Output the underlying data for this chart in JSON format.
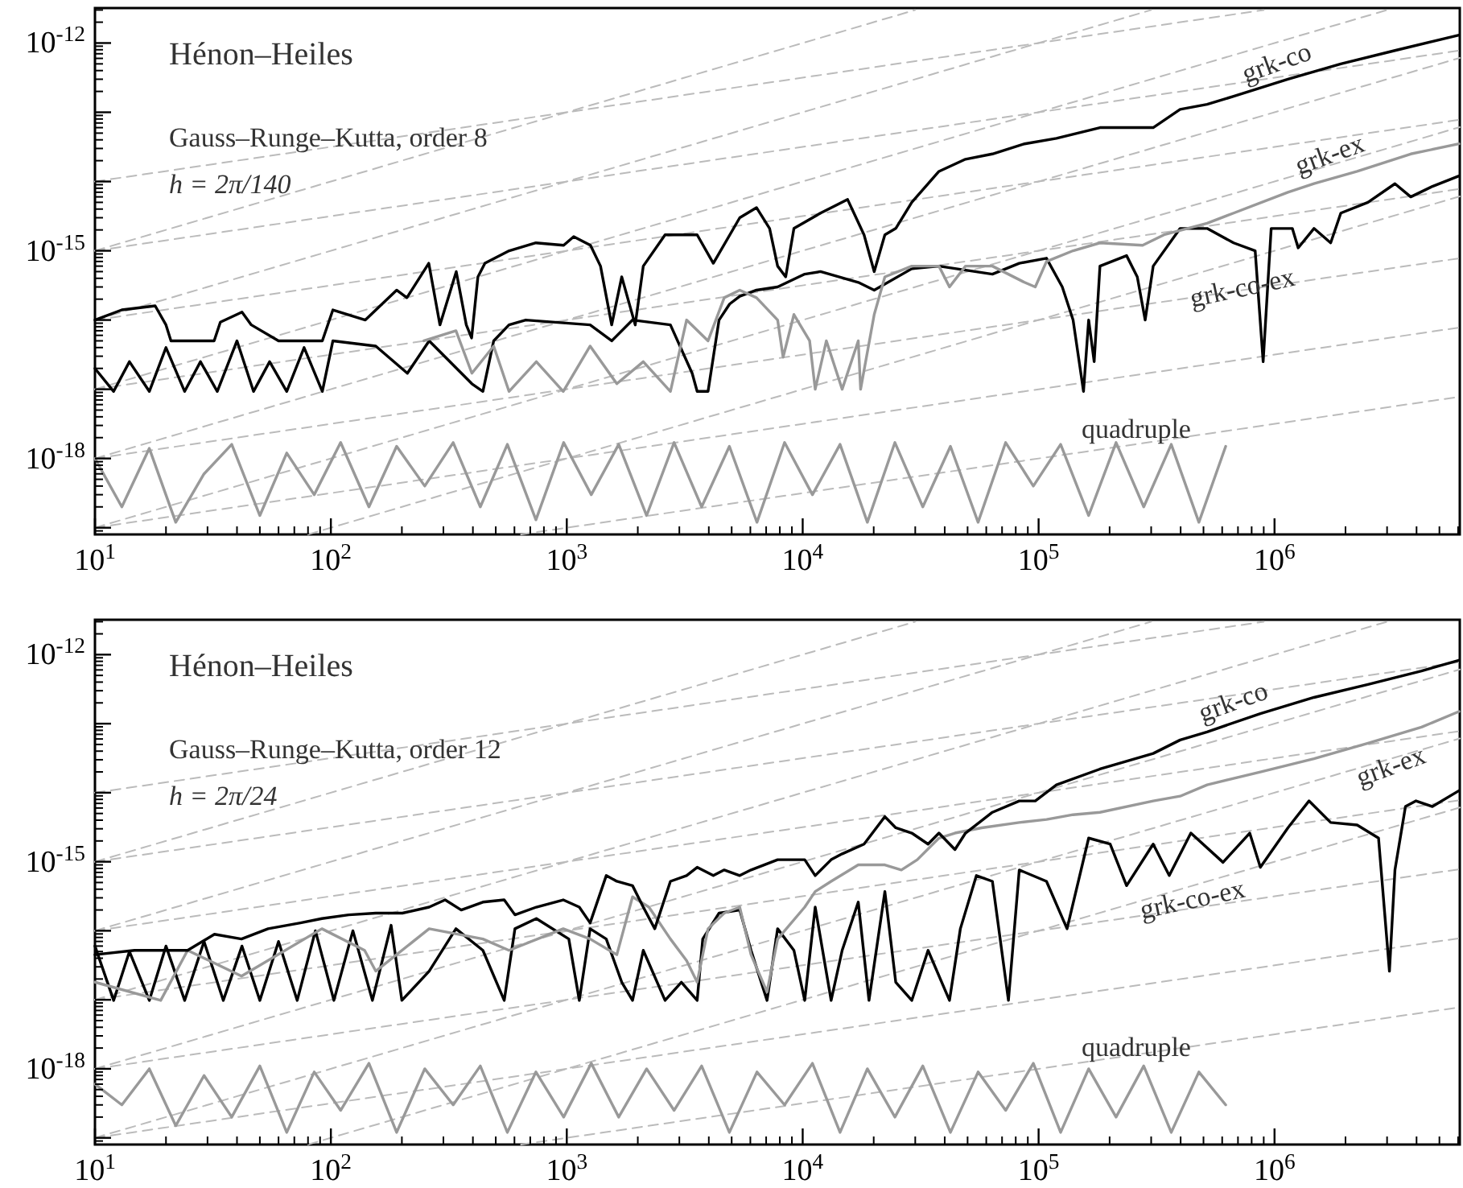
{
  "chart_data": [
    {
      "type": "line",
      "title": "Hénon–Heiles",
      "subtitle": "Gauss–Runge–Kutta, order 8",
      "annotations": [
        "h = 2π/140"
      ],
      "log": "xy",
      "xlim": [
        10,
        6100000
      ],
      "ylim": [
        8e-20,
        3.2e-12
      ],
      "xticks": [
        {
          "value": 10,
          "label": "10$^{1}$"
        },
        {
          "value": 100,
          "label": "10$^{2}$"
        },
        {
          "value": 1000,
          "label": "10$^{3}$"
        },
        {
          "value": 10000,
          "label": "10$^{4}$"
        },
        {
          "value": 100000,
          "label": "10$^{5}$"
        },
        {
          "value": 1000000,
          "label": "10$^{6}$"
        }
      ],
      "yticks": [
        {
          "value": 1e-19,
          "label": null
        },
        {
          "value": 1e-18,
          "label": "10$^{-18}$"
        },
        {
          "value": 1e-17,
          "label": null
        },
        {
          "value": 1e-16,
          "label": null
        },
        {
          "value": 1e-15,
          "label": "10$^{-15}$"
        },
        {
          "value": 1e-14,
          "label": null
        },
        {
          "value": 1e-13,
          "label": null
        },
        {
          "value": 1e-12,
          "label": "10$^{-12}$"
        }
      ],
      "series": [
        {
          "name": "grk-co",
          "color": "#000000",
          "x": [
            10,
            13,
            18,
            20,
            21,
            32,
            34,
            42,
            46,
            60,
            92,
            102,
            140,
            190,
            210,
            260,
            290,
            340,
            375,
            395,
            420,
            450,
            570,
            740,
            970,
            1070,
            1260,
            1390,
            1550,
            1710,
            1950,
            2110,
            2610,
            3570,
            4180,
            5410,
            6370,
            7240,
            7830,
            8470,
            9180,
            11900,
            15500,
            18200,
            20100,
            22300,
            24800,
            29000,
            37800,
            49000,
            63700,
            87100,
            119000,
            182000,
            306000,
            398000,
            518000,
            671000,
            1140000,
            1910000,
            3240000,
            6050000
          ],
          "values": [
            1e-16,
            1.4e-16,
            1.6e-16,
            8.5e-17,
            5e-17,
            5e-17,
            9.3e-17,
            1.3e-16,
            8.5e-17,
            5e-17,
            5e-17,
            1.4e-16,
            1e-16,
            2.7e-16,
            2.1e-16,
            6.6e-16,
            8.5e-17,
            5e-16,
            8.5e-17,
            5.5e-17,
            4.2e-16,
            6.6e-16,
            1e-15,
            1.3e-15,
            1.2e-15,
            1.6e-15,
            1.2e-15,
            6e-16,
            8.5e-17,
            4.2e-16,
            8.5e-17,
            6e-16,
            1.7e-15,
            1.7e-15,
            6.6e-16,
            3e-15,
            4.2e-15,
            2.1e-15,
            6e-16,
            4.2e-16,
            2.1e-15,
            3.5e-15,
            5.5e-15,
            1.7e-15,
            5e-16,
            1.7e-15,
            2.1e-15,
            5e-15,
            1.4e-14,
            2.1e-14,
            2.5e-14,
            3.5e-14,
            4.2e-14,
            6e-14,
            6e-14,
            1.1e-13,
            1.3e-13,
            1.7e-13,
            3e-13,
            5e-13,
            7.8e-13,
            1.3e-12
          ]
        },
        {
          "name": "grk-ex",
          "color": "#999999",
          "x": [
            248,
            339,
            396,
            490,
            569,
            743,
            966,
            1256,
            1630,
            2110,
            2750,
            3220,
            3970,
            4650,
            5410,
            6370,
            7830,
            8260,
            9180,
            10700,
            11300,
            12600,
            14700,
            17200,
            17600,
            20100,
            22300,
            29000,
            37800,
            41900,
            49000,
            63700,
            87100,
            96800,
            108000,
            140000,
            182000,
            276000,
            340000,
            518000,
            671000,
            1140000,
            1470000,
            2240000,
            3780000,
            6050000
          ],
          "values": [
            5e-17,
            7e-17,
            1.7e-17,
            4.2e-17,
            9.3e-18,
            2.5e-17,
            9.3e-18,
            4.2e-17,
            1.2e-17,
            2.5e-17,
            9.3e-18,
            1e-16,
            5e-17,
            2.1e-16,
            2.7e-16,
            2.1e-16,
            1e-16,
            2.9e-17,
            1.2e-16,
            5e-17,
            1e-17,
            5e-17,
            1e-17,
            5e-17,
            1e-17,
            1.2e-16,
            4.2e-16,
            6e-16,
            6e-16,
            3e-16,
            6e-16,
            6e-16,
            3.5e-16,
            3e-16,
            7e-16,
            1e-15,
            1.3e-15,
            1.2e-15,
            1.7e-15,
            2.5e-15,
            3.5e-15,
            7e-15,
            9.3e-15,
            1.4e-14,
            2.5e-14,
            3.5e-14
          ]
        },
        {
          "name": "grk-co-ex",
          "color": "#000000",
          "x": [
            10,
            12,
            14,
            17,
            20,
            24,
            28,
            33,
            40,
            47,
            55,
            65,
            77,
            92,
            102,
            155,
            211,
            261,
            396,
            441,
            490,
            569,
            670,
            1256,
            1550,
            1900,
            2750,
            3400,
            3570,
            3970,
            4420,
            4900,
            5410,
            6370,
            7830,
            10200,
            11900,
            17200,
            20100,
            29000,
            37800,
            63700,
            82800,
            108000,
            126000,
            140000,
            155000,
            163000,
            172000,
            182000,
            236000,
            262000,
            283000,
            306000,
            398000,
            518000,
            671000,
            828000,
            895000,
            968000,
            1190000,
            1260000,
            1470000,
            1730000,
            1910000,
            2490000,
            3240000,
            3780000,
            4670000,
            6050000
          ],
          "values": [
            2e-17,
            9.3e-18,
            2.5e-17,
            9.3e-18,
            4e-17,
            9.3e-18,
            2.5e-17,
            9.3e-18,
            5e-17,
            9.3e-18,
            2.5e-17,
            9.3e-18,
            4e-17,
            9.3e-18,
            5e-17,
            4.2e-17,
            1.7e-17,
            5e-17,
            1.2e-17,
            9.3e-18,
            5e-17,
            8.5e-17,
            1e-16,
            8.5e-17,
            5e-17,
            1e-16,
            8.5e-17,
            1.7e-17,
            9.3e-18,
            9.3e-18,
            1e-16,
            1.7e-16,
            2.2e-16,
            2.7e-16,
            3e-16,
            4.6e-16,
            5e-16,
            3.5e-16,
            2.7e-16,
            5.5e-16,
            6e-16,
            4.6e-16,
            6.6e-16,
            7.8e-16,
            3e-16,
            1e-16,
            9.3e-18,
            1e-16,
            2.5e-17,
            6e-16,
            8.5e-16,
            4.2e-16,
            1e-16,
            6e-16,
            2.1e-15,
            2.1e-15,
            1.3e-15,
            1e-15,
            2.5e-17,
            2.1e-15,
            2.1e-15,
            1.1e-15,
            2.1e-15,
            1.3e-15,
            3.5e-15,
            5e-15,
            9.3e-15,
            6e-15,
            8.5e-15,
            1.2e-14
          ]
        },
        {
          "name": "quadruple",
          "color": "#999999",
          "x": [
            10,
            13,
            17,
            22,
            29,
            38,
            50,
            65,
            85,
            110,
            145,
            190,
            250,
            330,
            430,
            560,
            740,
            970,
            1270,
            1660,
            2180,
            2850,
            3730,
            4890,
            6400,
            8380,
            11000,
            14400,
            18800,
            24600,
            32300,
            42300,
            55400,
            72500,
            95000,
            124000,
            163000,
            213000,
            279000,
            365000,
            478000,
            621000
          ],
          "values": [
            1e-18,
            2e-19,
            1.4e-18,
            1.2e-19,
            6e-19,
            1.6e-18,
            1.5e-19,
            1.2e-18,
            3e-19,
            1.7e-18,
            2e-19,
            1.5e-18,
            4e-19,
            1.7e-18,
            2e-19,
            1.6e-18,
            1.3e-19,
            1.7e-18,
            3e-19,
            1.6e-18,
            1.5e-19,
            1.7e-18,
            2e-19,
            1.5e-18,
            1.2e-19,
            1.7e-18,
            3e-19,
            1.6e-18,
            1.2e-19,
            1.7e-18,
            2e-19,
            1.5e-18,
            1.2e-19,
            1.7e-18,
            4e-19,
            1.6e-18,
            1.5e-19,
            1.7e-18,
            2e-19,
            1.6e-18,
            1.2e-19,
            1.5e-18
          ]
        },
        {
          "color": "#bbbbbb",
          "line_style": "dashed",
          "x": [
            10,
            900000
          ],
          "values": [
            1e-14,
            3e-12
          ]
        },
        {
          "color": "#bbbbbb",
          "line_style": "dashed",
          "x": [
            10,
            6100000
          ],
          "values": [
            1e-15,
            7.8e-13
          ]
        },
        {
          "color": "#bbbbbb",
          "line_style": "dashed",
          "x": [
            10,
            6100000
          ],
          "values": [
            1e-16,
            7.8e-14
          ]
        },
        {
          "color": "#bbbbbb",
          "line_style": "dashed",
          "x": [
            10,
            6100000
          ],
          "values": [
            1e-17,
            7.8e-15
          ]
        },
        {
          "color": "#bbbbbb",
          "line_style": "dashed",
          "x": [
            10,
            6100000
          ],
          "values": [
            1e-18,
            7.8e-16
          ]
        },
        {
          "color": "#bbbbbb",
          "line_style": "dashed",
          "x": [
            10,
            6100000
          ],
          "values": [
            1e-19,
            7.8e-17
          ]
        },
        {
          "color": "#bbbbbb",
          "line_style": "dashed",
          "x": [
            640,
            6100000
          ],
          "values": [
            8e-20,
            7.8e-18
          ]
        },
        {
          "color": "#bbbbbb",
          "line_style": "dashed",
          "x": [
            10,
            30000
          ],
          "values": [
            1e-15,
            3e-12
          ]
        },
        {
          "color": "#bbbbbb",
          "line_style": "dashed",
          "x": [
            10,
            300000
          ],
          "values": [
            1e-16,
            3e-12
          ]
        },
        {
          "color": "#bbbbbb",
          "line_style": "dashed",
          "x": [
            10,
            3000000
          ],
          "values": [
            1e-17,
            3e-12
          ]
        },
        {
          "color": "#bbbbbb",
          "line_style": "dashed",
          "x": [
            10,
            6100000
          ],
          "values": [
            1e-18,
            6.1e-13
          ]
        },
        {
          "color": "#bbbbbb",
          "line_style": "dashed",
          "x": [
            10,
            6100000
          ],
          "values": [
            1e-19,
            6.1e-14
          ]
        },
        {
          "color": "#bbbbbb",
          "line_style": "dashed",
          "x": [
            80,
            6100000
          ],
          "values": [
            8e-20,
            6.1e-15
          ]
        }
      ]
    },
    {
      "type": "line",
      "title": "Hénon–Heiles",
      "subtitle": "Gauss–Runge–Kutta, order 12",
      "annotations": [
        "h = 2π/24"
      ],
      "log": "xy",
      "xlim": [
        10,
        6100000
      ],
      "ylim": [
        8e-20,
        3.2e-12
      ],
      "xticks": [
        {
          "value": 10,
          "label": "10$^{1}$"
        },
        {
          "value": 100,
          "label": "10$^{2}$"
        },
        {
          "value": 1000,
          "label": "10$^{3}$"
        },
        {
          "value": 10000,
          "label": "10$^{4}$"
        },
        {
          "value": 100000,
          "label": "10$^{5}$"
        },
        {
          "value": 1000000,
          "label": "10$^{6}$"
        }
      ],
      "yticks": [
        {
          "value": 1e-19,
          "label": null
        },
        {
          "value": 1e-18,
          "label": "10$^{-18}$"
        },
        {
          "value": 1e-17,
          "label": null
        },
        {
          "value": 1e-16,
          "label": null
        },
        {
          "value": 1e-15,
          "label": "10$^{-15}$"
        },
        {
          "value": 1e-14,
          "label": null
        },
        {
          "value": 1e-13,
          "label": null
        },
        {
          "value": 1e-12,
          "label": "10$^{-12}$"
        }
      ],
      "series": [
        {
          "name": "grk-co",
          "color": "#000000",
          "x": [
            10,
            14.7,
            24.7,
            32.1,
            41.8,
            54.2,
            74.3,
            91.6,
            119,
            155,
            201,
            261,
            305,
            357,
            441,
            543,
            603,
            743,
            966,
            1130,
            1256,
            1470,
            1630,
            1900,
            2110,
            2360,
            2750,
            3220,
            3570,
            4180,
            4650,
            5410,
            6040,
            7830,
            10200,
            11300,
            13200,
            14700,
            18200,
            22300,
            24800,
            29000,
            34000,
            37800,
            44200,
            49000,
            63700,
            82800,
            96800,
            119000,
            182000,
            306000,
            398000,
            518000,
            871000,
            1470000,
            2490000,
            4200000,
            6050000
          ],
          "values": [
            4.5e-17,
            5.2e-17,
            5.2e-17,
            8.9e-17,
            7.6e-17,
            1.07e-16,
            1.3e-16,
            1.5e-16,
            1.7e-16,
            1.8e-16,
            1.8e-16,
            2.2e-16,
            2.8e-16,
            2e-16,
            2.6e-16,
            2.8e-16,
            1.7e-16,
            2.2e-16,
            2.8e-16,
            2.2e-16,
            1.3e-16,
            6.3e-16,
            5.2e-16,
            4.5e-16,
            2.2e-16,
            1.07e-16,
            5.2e-16,
            6.3e-16,
            8.3e-16,
            6.3e-16,
            7.6e-16,
            6.3e-16,
            7.6e-16,
            1.07e-15,
            1.07e-15,
            6.3e-16,
            1.07e-15,
            1.3e-15,
            1.8e-15,
            4.5e-15,
            3.1e-15,
            2.6e-15,
            1.8e-15,
            2.6e-15,
            1.5e-15,
            2.6e-15,
            5.2e-15,
            7.6e-15,
            7.6e-15,
            1.3e-14,
            2.2e-14,
            3.7e-14,
            5.8e-14,
            7.6e-14,
            1.4e-13,
            2.4e-13,
            3.7e-13,
            5.8e-13,
            8.3e-13
          ]
        },
        {
          "name": "grk-ex",
          "color": "#999999",
          "x": [
            10,
            19,
            24.7,
            41.8,
            91.6,
            139,
            155,
            261,
            441,
            569,
            966,
            1256,
            1630,
            1900,
            2230,
            2750,
            3220,
            3570,
            3970,
            4650,
            5410,
            6040,
            7060,
            7830,
            10200,
            11300,
            13200,
            17200,
            22300,
            26200,
            30600,
            37800,
            44200,
            57400,
            82800,
            108000,
            140000,
            182000,
            306000,
            398000,
            518000,
            871000,
            1470000,
            2490000,
            4200000,
            6050000
          ],
          "values": [
            1.8e-17,
            9.8e-18,
            5.2e-17,
            2.2e-17,
            1.07e-16,
            5.2e-17,
            2.6e-17,
            1.07e-16,
            7.6e-17,
            5.2e-17,
            1.07e-16,
            7.6e-17,
            4.5e-17,
            3.1e-16,
            2.2e-16,
            7.6e-17,
            3.7e-17,
            1.8e-17,
            1.07e-16,
            1.8e-16,
            2.2e-16,
            4.5e-17,
            1.3e-17,
            7.6e-17,
            2.2e-16,
            3.7e-16,
            5.2e-16,
            9e-16,
            9e-16,
            7.6e-16,
            1.07e-15,
            2.2e-15,
            2.6e-15,
            3.1e-15,
            3.7e-15,
            4.1e-15,
            4.8e-15,
            5.2e-15,
            7.6e-15,
            8.9e-15,
            1.3e-14,
            2e-14,
            3.1e-14,
            5.2e-14,
            8.9e-14,
            1.5e-13
          ]
        },
        {
          "name": "grk-co-ex",
          "color": "#000000",
          "x": [
            10,
            12,
            14,
            17,
            20,
            24,
            29,
            35,
            42,
            50,
            60,
            72,
            86,
            103,
            124,
            150,
            180,
            200,
            261,
            339,
            441,
            543,
            603,
            743,
            1020,
            1130,
            1256,
            1470,
            1710,
            1900,
            2110,
            2610,
            3060,
            3570,
            3770,
            4420,
            5410,
            6040,
            7060,
            7830,
            9180,
            10200,
            11300,
            13200,
            14700,
            17200,
            19100,
            22300,
            24800,
            29000,
            34000,
            41900,
            46600,
            54500,
            63700,
            74500,
            82800,
            108000,
            132000,
            163000,
            201000,
            236000,
            306000,
            358000,
            442000,
            605000,
            785000,
            871000,
            1140000,
            1400000,
            1730000,
            2240000,
            2760000,
            3070000,
            3240000,
            3590000,
            3980000,
            4670000,
            6050000
          ],
          "values": [
            6e-17,
            9.8e-18,
            5e-17,
            9.8e-18,
            6e-17,
            9.8e-18,
            7e-17,
            9.8e-18,
            6e-17,
            9.8e-18,
            7e-17,
            9.8e-18,
            1e-16,
            9.8e-18,
            1e-16,
            9.8e-18,
            1.2e-16,
            9.8e-18,
            2.6e-17,
            1.07e-16,
            5.2e-17,
            9.8e-18,
            1.07e-16,
            1.5e-16,
            7.6e-17,
            9.8e-18,
            1.07e-16,
            7.6e-17,
            1.8e-17,
            9.8e-18,
            5.2e-17,
            9.8e-18,
            1.8e-17,
            9.8e-18,
            7.6e-17,
            1.8e-16,
            2e-16,
            5.2e-17,
            9.8e-18,
            1.07e-16,
            5.2e-17,
            9.8e-18,
            2.2e-16,
            9.8e-18,
            5.2e-17,
            2.6e-16,
            9.8e-18,
            3.7e-16,
            1.8e-17,
            9.8e-18,
            5.2e-17,
            9.8e-18,
            1.07e-16,
            6.3e-16,
            5.2e-16,
            9.8e-18,
            7.6e-16,
            5.2e-16,
            1.07e-16,
            2.2e-15,
            1.8e-15,
            4.5e-16,
            1.8e-15,
            6.3e-16,
            2.6e-15,
            9.8e-16,
            2.6e-15,
            8.3e-16,
            3.1e-15,
            7.6e-15,
            3.7e-15,
            3.4e-15,
            2.2e-15,
            2.6e-17,
            7.6e-16,
            6.3e-15,
            7.6e-15,
            6.3e-15,
            1.07e-14
          ]
        },
        {
          "name": "quadruple",
          "color": "#999999",
          "x": [
            10,
            13,
            17,
            22,
            29,
            38,
            50,
            65,
            85,
            110,
            145,
            190,
            250,
            330,
            430,
            560,
            740,
            970,
            1270,
            1660,
            2180,
            2850,
            3730,
            4890,
            6400,
            8380,
            11000,
            14400,
            18800,
            24600,
            32300,
            42300,
            55400,
            72500,
            95000,
            124000,
            163000,
            213000,
            279000,
            365000,
            478000,
            621000
          ],
          "values": [
            6e-19,
            3e-19,
            1e-18,
            1.5e-19,
            8e-19,
            2e-19,
            1.1e-18,
            1.2e-19,
            9e-19,
            2.5e-19,
            1.2e-18,
            1.2e-19,
            1e-18,
            3e-19,
            1.1e-18,
            1.2e-19,
            9e-19,
            2e-19,
            1.2e-18,
            2e-19,
            1e-18,
            2.5e-19,
            1.1e-18,
            1.2e-19,
            9e-19,
            3e-19,
            1.2e-18,
            1.2e-19,
            1e-18,
            2e-19,
            1.1e-18,
            1.2e-19,
            9e-19,
            2.5e-19,
            1.2e-18,
            1.2e-19,
            1e-18,
            2e-19,
            1.1e-18,
            1.2e-19,
            9e-19,
            3e-19
          ]
        },
        {
          "color": "#bbbbbb",
          "line_style": "dashed",
          "x": [
            10,
            900000
          ],
          "values": [
            1e-14,
            3e-12
          ]
        },
        {
          "color": "#bbbbbb",
          "line_style": "dashed",
          "x": [
            10,
            6100000
          ],
          "values": [
            1e-15,
            7.8e-13
          ]
        },
        {
          "color": "#bbbbbb",
          "line_style": "dashed",
          "x": [
            10,
            6100000
          ],
          "values": [
            1e-16,
            7.8e-14
          ]
        },
        {
          "color": "#bbbbbb",
          "line_style": "dashed",
          "x": [
            10,
            6100000
          ],
          "values": [
            1e-17,
            7.8e-15
          ]
        },
        {
          "color": "#bbbbbb",
          "line_style": "dashed",
          "x": [
            10,
            6100000
          ],
          "values": [
            1e-18,
            7.8e-16
          ]
        },
        {
          "color": "#bbbbbb",
          "line_style": "dashed",
          "x": [
            10,
            6100000
          ],
          "values": [
            1e-19,
            7.8e-17
          ]
        },
        {
          "color": "#bbbbbb",
          "line_style": "dashed",
          "x": [
            640,
            6100000
          ],
          "values": [
            8e-20,
            7.8e-18
          ]
        },
        {
          "color": "#bbbbbb",
          "line_style": "dashed",
          "x": [
            10,
            30000
          ],
          "values": [
            1e-15,
            3e-12
          ]
        },
        {
          "color": "#bbbbbb",
          "line_style": "dashed",
          "x": [
            10,
            300000
          ],
          "values": [
            1e-16,
            3e-12
          ]
        },
        {
          "color": "#bbbbbb",
          "line_style": "dashed",
          "x": [
            10,
            3000000
          ],
          "values": [
            1e-17,
            3e-12
          ]
        },
        {
          "color": "#bbbbbb",
          "line_style": "dashed",
          "x": [
            10,
            6100000
          ],
          "values": [
            1e-18,
            6.1e-13
          ]
        },
        {
          "color": "#bbbbbb",
          "line_style": "dashed",
          "x": [
            10,
            6100000
          ],
          "values": [
            1e-19,
            6.1e-14
          ]
        },
        {
          "color": "#bbbbbb",
          "line_style": "dashed",
          "x": [
            80,
            6100000
          ],
          "values": [
            8e-20,
            6.1e-15
          ]
        }
      ]
    }
  ]
}
